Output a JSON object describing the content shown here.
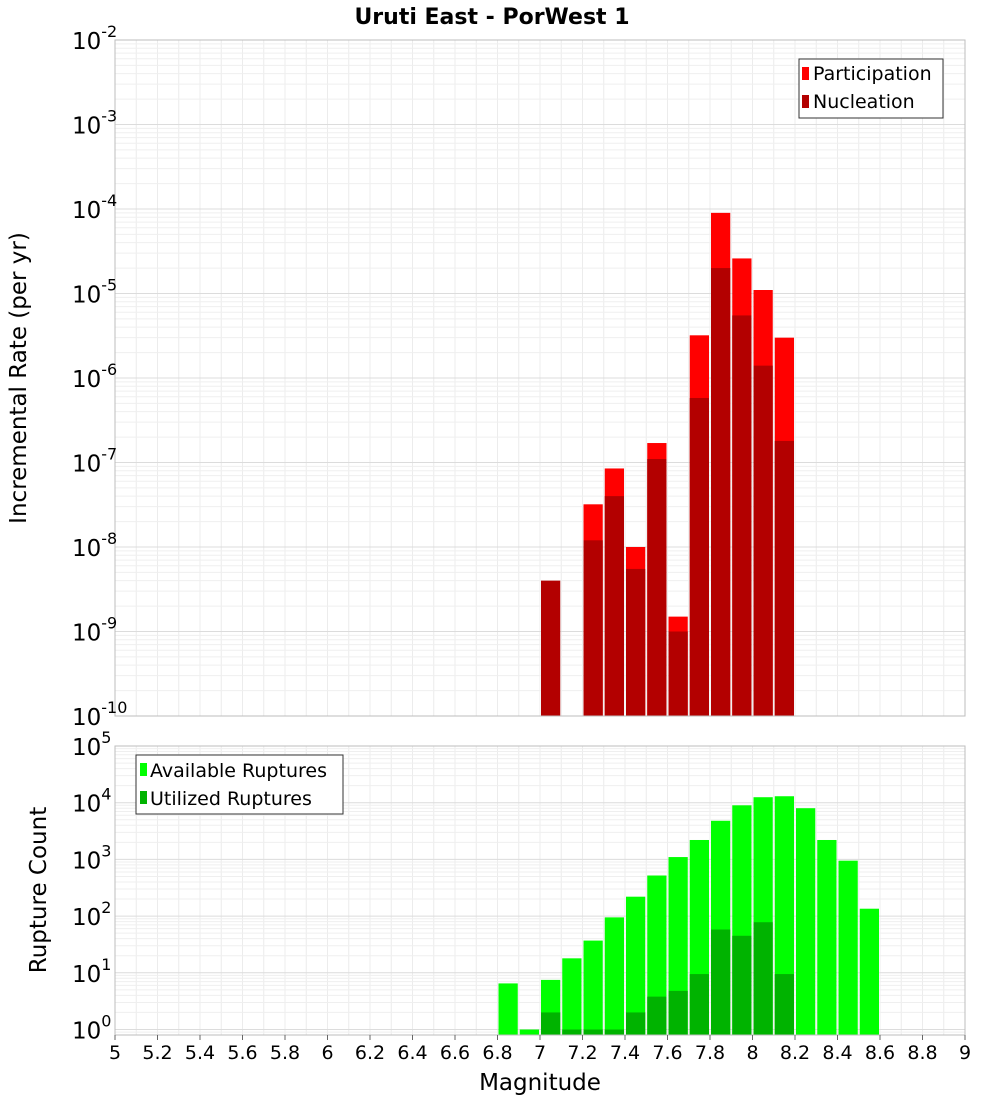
{
  "chart_data": [
    {
      "type": "bar",
      "title": "Uruti East - PorWest 1",
      "xlabel": "",
      "ylabel": "Incremental Rate (per yr)",
      "yscale": "log",
      "ylim": [
        1e-10,
        0.01
      ],
      "ytick_labels": [
        {
          "base": "10",
          "exp": "-10"
        },
        {
          "base": "10",
          "exp": "-9"
        },
        {
          "base": "10",
          "exp": "-8"
        },
        {
          "base": "10",
          "exp": "-7"
        },
        {
          "base": "10",
          "exp": "-6"
        },
        {
          "base": "10",
          "exp": "-5"
        },
        {
          "base": "10",
          "exp": "-4"
        },
        {
          "base": "10",
          "exp": "-3"
        },
        {
          "base": "10",
          "exp": "-2"
        }
      ],
      "xlim": [
        5,
        9
      ],
      "bar_width": 0.1,
      "grid": true,
      "legend_position": "top-right",
      "series": [
        {
          "name": "Participation",
          "color": "#ff0000",
          "x": [
            7.25,
            7.35,
            7.45,
            7.55,
            7.65,
            7.75,
            7.85,
            7.95,
            8.05,
            8.15
          ],
          "values": [
            3.2e-08,
            8.5e-08,
            1e-08,
            1.7e-07,
            1.5e-09,
            3.2e-06,
            9e-05,
            2.6e-05,
            1.1e-05,
            3e-06
          ]
        },
        {
          "name": "Nucleation",
          "color": "#b30000",
          "x": [
            7.05,
            7.25,
            7.35,
            7.45,
            7.55,
            7.65,
            7.75,
            7.85,
            7.95,
            8.05,
            8.15
          ],
          "values": [
            4e-09,
            1.2e-08,
            4e-08,
            5.5e-09,
            1.1e-07,
            1e-09,
            5.8e-07,
            2e-05,
            5.5e-06,
            1.4e-06,
            1.8e-07
          ]
        }
      ]
    },
    {
      "type": "bar",
      "title": "",
      "xlabel": "Magnitude",
      "ylabel": "Rupture Count",
      "yscale": "log",
      "ylim": [
        0.8,
        100000
      ],
      "ytick_labels": [
        {
          "base": "10",
          "exp": "0"
        },
        {
          "base": "10",
          "exp": "1"
        },
        {
          "base": "10",
          "exp": "2"
        },
        {
          "base": "10",
          "exp": "3"
        },
        {
          "base": "10",
          "exp": "4"
        },
        {
          "base": "10",
          "exp": "5"
        }
      ],
      "xlim": [
        5,
        9
      ],
      "xticks": [
        "5",
        "5.2",
        "5.4",
        "5.6",
        "5.8",
        "6",
        "6.2",
        "6.4",
        "6.6",
        "6.8",
        "7",
        "7.2",
        "7.4",
        "7.6",
        "7.8",
        "8",
        "8.2",
        "8.4",
        "8.6",
        "8.8",
        "9"
      ],
      "bar_width": 0.1,
      "grid": true,
      "legend_position": "top-left",
      "series": [
        {
          "name": "Available Ruptures",
          "color": "#00ff00",
          "x": [
            6.85,
            6.95,
            7.05,
            7.15,
            7.25,
            7.35,
            7.45,
            7.55,
            7.65,
            7.75,
            7.85,
            7.95,
            8.05,
            8.15,
            8.25,
            8.35,
            8.45,
            8.55
          ],
          "values": [
            6.5,
            1,
            7.5,
            18,
            37,
            95,
            220,
            520,
            1100,
            2200,
            4800,
            9000,
            12500,
            13000,
            8000,
            2200,
            950,
            135
          ]
        },
        {
          "name": "Utilized Ruptures",
          "color": "#00b300",
          "x": [
            7.05,
            7.15,
            7.25,
            7.35,
            7.45,
            7.55,
            7.65,
            7.75,
            7.85,
            7.95,
            8.05,
            8.15
          ],
          "values": [
            2,
            1,
            1,
            1,
            2,
            3.8,
            4.8,
            9.5,
            58,
            45,
            78,
            9.5
          ]
        }
      ]
    }
  ]
}
